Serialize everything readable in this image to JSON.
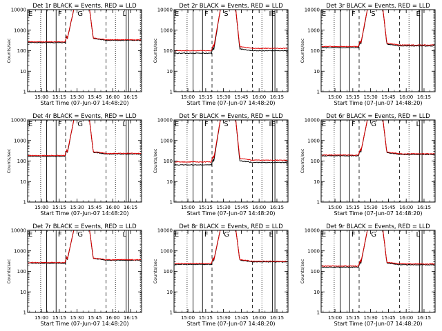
{
  "chart_data": [
    {
      "type": "line",
      "title": "Det 1r BLACK = Events, RED = LLD",
      "xlabel": "Start Time (07-Jun-07 14:48:20)",
      "ylabel": "Counts/sec",
      "x_ticks": [
        "15:00",
        "15:15",
        "15:30",
        "15:45",
        "16:00",
        "16:15"
      ],
      "y_ticks": [
        "1",
        "10",
        "100",
        "1000",
        "10000"
      ],
      "y_scale": "log",
      "ylim": [
        1,
        10000
      ],
      "xlim_minutes": [
        0,
        96
      ],
      "markers": [
        "E",
        "F",
        "G",
        "L"
      ],
      "series": [
        {
          "name": "Events",
          "color": "#000000",
          "before": 250,
          "after": 320
        },
        {
          "name": "LLD",
          "color": "#e00000",
          "before": 270,
          "after": 340
        }
      ]
    },
    {
      "type": "line",
      "title": "Det 2r BLACK = Events, RED = LLD",
      "xlabel": "Start Time (07-Jun-07 14:48:20)",
      "ylabel": "Counts/sec",
      "x_ticks": [
        "15:00",
        "15:15",
        "15:30",
        "15:45",
        "16:00",
        "16:15"
      ],
      "y_ticks": [
        "1",
        "10",
        "100",
        "1000",
        "10000"
      ],
      "y_scale": "log",
      "ylim": [
        1,
        10000
      ],
      "xlim_minutes": [
        0,
        96
      ],
      "markers": [
        "E",
        "F",
        "S",
        "IE"
      ],
      "series": [
        {
          "name": "Events",
          "color": "#000000",
          "before": 75,
          "after": 100
        },
        {
          "name": "LLD",
          "color": "#e00000",
          "before": 100,
          "after": 130
        }
      ]
    },
    {
      "type": "line",
      "title": "Det 3r BLACK = Events, RED = LLD",
      "xlabel": "Start Time (07-Jun-07 14:48:20)",
      "ylabel": "Counts/sec",
      "x_ticks": [
        "15:00",
        "15:15",
        "15:30",
        "15:45",
        "16:00",
        "16:15"
      ],
      "y_ticks": [
        "1",
        "10",
        "100",
        "1000",
        "10000"
      ],
      "y_scale": "log",
      "ylim": [
        1,
        10000
      ],
      "xlim_minutes": [
        0,
        96
      ],
      "markers": [
        "E",
        "F",
        "S",
        "E"
      ],
      "series": [
        {
          "name": "Events",
          "color": "#000000",
          "before": 140,
          "after": 170
        },
        {
          "name": "LLD",
          "color": "#e00000",
          "before": 160,
          "after": 190
        }
      ]
    },
    {
      "type": "line",
      "title": "Det 4r BLACK = Events, RED = LLD",
      "xlabel": "Start Time (07-Jun-07 14:48:20)",
      "ylabel": "Counts/sec",
      "x_ticks": [
        "15:00",
        "15:15",
        "15:30",
        "15:45",
        "16:00",
        "16:15"
      ],
      "y_ticks": [
        "1",
        "10",
        "100",
        "1000",
        "10000"
      ],
      "y_scale": "log",
      "ylim": [
        1,
        10000
      ],
      "xlim_minutes": [
        0,
        96
      ],
      "markers": [
        "E",
        "F",
        "G",
        "L"
      ],
      "series": [
        {
          "name": "Events",
          "color": "#000000",
          "before": 170,
          "after": 220
        },
        {
          "name": "LLD",
          "color": "#e00000",
          "before": 185,
          "after": 235
        }
      ]
    },
    {
      "type": "line",
      "title": "Det 5r BLACK = Events, RED = LLD",
      "xlabel": "Start Time (07-Jun-07 14:48:20)",
      "ylabel": "Counts/sec",
      "x_ticks": [
        "15:00",
        "15:15",
        "15:30",
        "15:45",
        "16:00",
        "16:15"
      ],
      "y_ticks": [
        "1",
        "10",
        "100",
        "1000",
        "10000"
      ],
      "y_scale": "log",
      "ylim": [
        1,
        10000
      ],
      "xlim_minutes": [
        0,
        96
      ],
      "markers": [
        "E",
        "F",
        "S",
        "IE"
      ],
      "series": [
        {
          "name": "Events",
          "color": "#000000",
          "before": 65,
          "after": 85
        },
        {
          "name": "LLD",
          "color": "#e00000",
          "before": 90,
          "after": 110
        }
      ]
    },
    {
      "type": "line",
      "title": "Det 6r BLACK = Events, RED = LLD",
      "xlabel": "Start Time (07-Jun-07 14:48:20)",
      "ylabel": "Counts/sec",
      "x_ticks": [
        "15:00",
        "15:15",
        "15:30",
        "15:45",
        "16:00",
        "16:15"
      ],
      "y_ticks": [
        "1",
        "10",
        "100",
        "1000",
        "10000"
      ],
      "y_scale": "log",
      "ylim": [
        1,
        10000
      ],
      "xlim_minutes": [
        0,
        96
      ],
      "markers": [
        "E",
        "F",
        "G",
        "L"
      ],
      "series": [
        {
          "name": "Events",
          "color": "#000000",
          "before": 180,
          "after": 210
        },
        {
          "name": "LLD",
          "color": "#e00000",
          "before": 195,
          "after": 225
        }
      ]
    },
    {
      "type": "line",
      "title": "Det 7r BLACK = Events, RED = LLD",
      "xlabel": "Start Time (07-Jun-07 14:48:20)",
      "ylabel": "Counts/sec",
      "x_ticks": [
        "15:00",
        "15:15",
        "15:30",
        "15:45",
        "16:00",
        "16:15"
      ],
      "y_ticks": [
        "1",
        "10",
        "100",
        "1000",
        "10000"
      ],
      "y_scale": "log",
      "ylim": [
        1,
        10000
      ],
      "xlim_minutes": [
        0,
        96
      ],
      "markers": [
        "E",
        "F",
        "G",
        "L"
      ],
      "series": [
        {
          "name": "Events",
          "color": "#000000",
          "before": 250,
          "after": 350
        },
        {
          "name": "LLD",
          "color": "#e00000",
          "before": 270,
          "after": 370
        }
      ]
    },
    {
      "type": "line",
      "title": "Det 8r BLACK = Events, RED = LLD",
      "xlabel": "Start Time (07-Jun-07 14:48:20)",
      "ylabel": "Counts/sec",
      "x_ticks": [
        "15:00",
        "15:15",
        "15:30",
        "15:45",
        "16:00",
        "16:15"
      ],
      "y_ticks": [
        "1",
        "10",
        "100",
        "1000",
        "10000"
      ],
      "y_scale": "log",
      "ylim": [
        1,
        10000
      ],
      "xlim_minutes": [
        0,
        96
      ],
      "markers": [
        "E",
        "F",
        "G",
        "E"
      ],
      "series": [
        {
          "name": "Events",
          "color": "#000000",
          "before": 220,
          "after": 290
        },
        {
          "name": "LLD",
          "color": "#e00000",
          "before": 240,
          "after": 310
        }
      ]
    },
    {
      "type": "line",
      "title": "Det 9r BLACK = Events, RED = LLD",
      "xlabel": "Start Time (07-Jun-07 14:48:20)",
      "ylabel": "Counts/sec",
      "x_ticks": [
        "15:00",
        "15:15",
        "15:30",
        "15:45",
        "16:00",
        "16:15"
      ],
      "y_ticks": [
        "1",
        "10",
        "100",
        "1000",
        "10000"
      ],
      "y_scale": "log",
      "ylim": [
        1,
        10000
      ],
      "xlim_minutes": [
        0,
        96
      ],
      "markers": [
        "E",
        "F",
        "G",
        "L"
      ],
      "series": [
        {
          "name": "Events",
          "color": "#000000",
          "before": 160,
          "after": 210
        },
        {
          "name": "LLD",
          "color": "#e00000",
          "before": 180,
          "after": 230
        }
      ]
    }
  ]
}
